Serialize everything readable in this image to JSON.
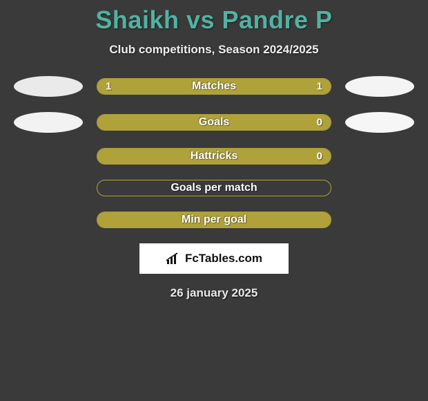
{
  "title": "Shaikh vs Pandre P",
  "subtitle": "Club competitions, Season 2024/2025",
  "date": "26 january 2025",
  "brand": {
    "text": "FcTables.com"
  },
  "colors": {
    "title": "#51b2a2",
    "bar_border": "#b0a23a",
    "bar_fill": "#b0a23a",
    "disc_light": "#eaeaea",
    "disc_lighter": "#f2f2f2",
    "background": "#3a3a3a"
  },
  "stats": [
    {
      "label": "Matches",
      "left_value": "1",
      "right_value": "1",
      "left_fill_pct": 50,
      "right_fill_pct": 50,
      "left_disc": "#eaeaea",
      "right_disc": "#f4f4f4"
    },
    {
      "label": "Goals",
      "left_value": "",
      "right_value": "0",
      "left_fill_pct": 100,
      "right_fill_pct": 0,
      "left_disc": "#f2f2f2",
      "right_disc": "#f6f6f6"
    },
    {
      "label": "Hattricks",
      "left_value": "",
      "right_value": "0",
      "left_fill_pct": 100,
      "right_fill_pct": 0,
      "left_disc": null,
      "right_disc": null
    },
    {
      "label": "Goals per match",
      "left_value": "",
      "right_value": "",
      "left_fill_pct": 0,
      "right_fill_pct": 0,
      "left_disc": null,
      "right_disc": null
    },
    {
      "label": "Min per goal",
      "left_value": "",
      "right_value": "",
      "left_fill_pct": 0,
      "right_fill_pct": 100,
      "left_disc": null,
      "right_disc": null
    }
  ]
}
